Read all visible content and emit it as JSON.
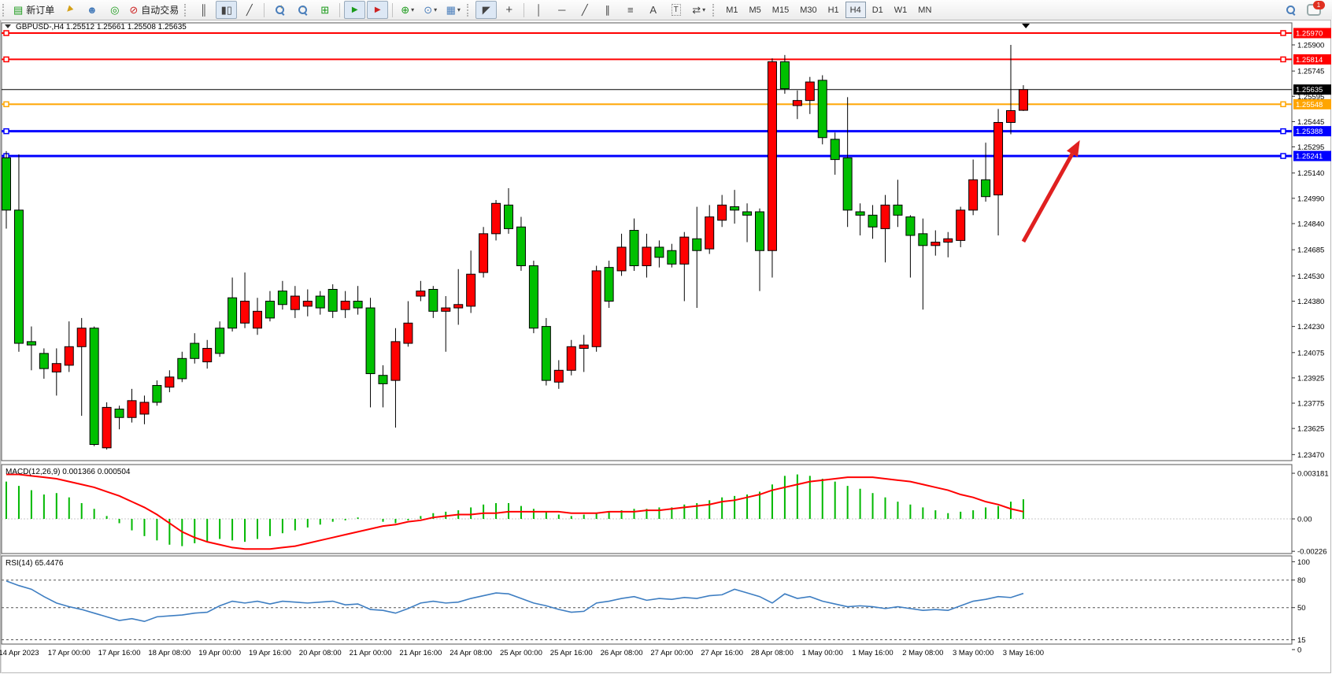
{
  "toolbar": {
    "new_order_label": "新订单",
    "autotrade_label": "自动交易",
    "timeframes": [
      "M1",
      "M5",
      "M15",
      "M30",
      "H1",
      "H4",
      "D1",
      "W1",
      "MN"
    ],
    "active_timeframe": "H4",
    "notification_count": "1"
  },
  "icons": {
    "new_order": "▤",
    "gold_arrow": "▲",
    "profile": "☻",
    "signals": "◎",
    "autotrade": "⊘",
    "bars_chart": "║",
    "candle_chart": "▮▯",
    "line_chart": "╱",
    "zoom_in": "+",
    "zoom_out": "−",
    "tiles": "⊞",
    "autoscroll": "▶",
    "shift": "▶",
    "indicators": "⊕",
    "periods": "⊙",
    "template": "▦",
    "cursor": "◤",
    "crosshair": "+",
    "vline": "│",
    "hline": "─",
    "trendline": "╱",
    "channel": "∥",
    "fibo": "≡",
    "text": "A",
    "label": "T",
    "arrows": "⇄",
    "dropdown": "▾"
  },
  "chart": {
    "title": "GBPUSD-,H4  1.25512 1.25661 1.25508 1.25635",
    "symbol": "GBPUSD-",
    "period": "H4",
    "open": "1.25512",
    "high": "1.25661",
    "low": "1.25508",
    "close": "1.25635"
  },
  "chart_data": {
    "type": "candlestick",
    "title": "GBPUSD-,H4  1.25512 1.25661 1.25508 1.25635",
    "price_axis_ticks": [
      "1.25900",
      "1.25745",
      "1.25595",
      "1.25445",
      "1.25295",
      "1.25140",
      "1.24990",
      "1.24840",
      "1.24685",
      "1.24530",
      "1.24380",
      "1.24230",
      "1.24075",
      "1.23925",
      "1.23775",
      "1.23625",
      "1.23470"
    ],
    "time_labels": [
      "14 Apr 2023",
      "17 Apr 00:00",
      "17 Apr 16:00",
      "18 Apr 08:00",
      "19 Apr 00:00",
      "19 Apr 16:00",
      "20 Apr 08:00",
      "21 Apr 00:00",
      "21 Apr 16:00",
      "24 Apr 08:00",
      "25 Apr 00:00",
      "25 Apr 16:00",
      "26 Apr 08:00",
      "27 Apr 00:00",
      "27 Apr 16:00",
      "28 Apr 08:00",
      "1 May 00:00",
      "1 May 16:00",
      "2 May 08:00",
      "3 May 00:00",
      "3 May 16:00"
    ],
    "levels": [
      {
        "label": "1.25970",
        "price": 1.2597,
        "color": "#ff0000",
        "width": 2,
        "handles": true
      },
      {
        "label": "1.25814",
        "price": 1.25814,
        "color": "#ff0000",
        "width": 2,
        "handles": true
      },
      {
        "label": "1.25635",
        "price": 1.25635,
        "color": "#000000",
        "width": 1,
        "handles": false
      },
      {
        "label": "1.25548",
        "price": 1.25548,
        "color": "#ffa500",
        "width": 2,
        "handles": true
      },
      {
        "label": "1.25388",
        "price": 1.25388,
        "color": "#0000ff",
        "width": 3,
        "handles": true
      },
      {
        "label": "1.25241",
        "price": 1.25241,
        "color": "#0000ff",
        "width": 3,
        "handles": true
      }
    ],
    "candles_columns": [
      "bullish",
      "body_top",
      "body_bottom",
      "high",
      "low"
    ],
    "candles": [
      [
        1,
        1.2523,
        1.2492,
        1.2527,
        1.2481
      ],
      [
        1,
        1.2492,
        1.2413,
        1.2525,
        1.2408
      ],
      [
        1,
        1.2414,
        1.2412,
        1.2423,
        1.2397
      ],
      [
        1,
        1.2407,
        1.2398,
        1.241,
        1.2392
      ],
      [
        0,
        1.2401,
        1.2396,
        1.241,
        1.2382
      ],
      [
        0,
        1.2411,
        1.24,
        1.2426,
        1.2396
      ],
      [
        0,
        1.2422,
        1.2411,
        1.2428,
        1.237
      ],
      [
        1,
        1.2422,
        1.2353,
        1.2423,
        1.2352
      ],
      [
        0,
        1.2375,
        1.2351,
        1.2378,
        1.235
      ],
      [
        1,
        1.2374,
        1.2369,
        1.2376,
        1.2362
      ],
      [
        0,
        1.2379,
        1.2369,
        1.2386,
        1.2366
      ],
      [
        0,
        1.2378,
        1.2371,
        1.2382,
        1.2365
      ],
      [
        1,
        1.2388,
        1.2378,
        1.2391,
        1.2376
      ],
      [
        0,
        1.2393,
        1.2387,
        1.2397,
        1.2384
      ],
      [
        1,
        1.2404,
        1.2392,
        1.2408,
        1.239
      ],
      [
        1,
        1.2413,
        1.2404,
        1.2419,
        1.2401
      ],
      [
        0,
        1.241,
        1.2402,
        1.2415,
        1.2398
      ],
      [
        1,
        1.2422,
        1.2407,
        1.2426,
        1.2405
      ],
      [
        1,
        1.244,
        1.2422,
        1.2452,
        1.242
      ],
      [
        0,
        1.2438,
        1.2425,
        1.2455,
        1.2422
      ],
      [
        0,
        1.2432,
        1.2422,
        1.244,
        1.2418
      ],
      [
        1,
        1.2438,
        1.2428,
        1.2444,
        1.2426
      ],
      [
        1,
        1.2444,
        1.2436,
        1.245,
        1.2433
      ],
      [
        0,
        1.2441,
        1.2433,
        1.2447,
        1.2428
      ],
      [
        0,
        1.2438,
        1.2435,
        1.2445,
        1.2429
      ],
      [
        1,
        1.2441,
        1.2434,
        1.2444,
        1.243
      ],
      [
        1,
        1.2445,
        1.2432,
        1.2448,
        1.2428
      ],
      [
        0,
        1.2438,
        1.2433,
        1.2444,
        1.2428
      ],
      [
        1,
        1.2438,
        1.2434,
        1.2447,
        1.243
      ],
      [
        1,
        1.2434,
        1.2395,
        1.244,
        1.2375
      ],
      [
        1,
        1.2394,
        1.2389,
        1.24,
        1.2375
      ],
      [
        0,
        1.2414,
        1.2391,
        1.2422,
        1.2363
      ],
      [
        0,
        1.2425,
        1.2413,
        1.2438,
        1.2411
      ],
      [
        0,
        1.2444,
        1.2441,
        1.245,
        1.2438
      ],
      [
        1,
        1.2445,
        1.2432,
        1.2447,
        1.2428
      ],
      [
        0,
        1.2434,
        1.2432,
        1.2441,
        1.2408
      ],
      [
        0,
        1.2436,
        1.2434,
        1.2457,
        1.2424
      ],
      [
        0,
        1.2454,
        1.2435,
        1.2468,
        1.2431
      ],
      [
        0,
        1.2478,
        1.2455,
        1.2482,
        1.2452
      ],
      [
        0,
        1.2496,
        1.2478,
        1.2498,
        1.2474
      ],
      [
        1,
        1.2495,
        1.2481,
        1.2505,
        1.2478
      ],
      [
        1,
        1.2482,
        1.2459,
        1.2488,
        1.2456
      ],
      [
        1,
        1.2459,
        1.2422,
        1.2462,
        1.2419
      ],
      [
        1,
        1.2423,
        1.2391,
        1.2428,
        1.2388
      ],
      [
        0,
        1.2397,
        1.239,
        1.2403,
        1.2386
      ],
      [
        0,
        1.2411,
        1.2397,
        1.2415,
        1.2394
      ],
      [
        0,
        1.2412,
        1.241,
        1.2418,
        1.2396
      ],
      [
        0,
        1.2456,
        1.2411,
        1.2459,
        1.2408
      ],
      [
        1,
        1.2458,
        1.2438,
        1.2462,
        1.2434
      ],
      [
        0,
        1.247,
        1.2456,
        1.2478,
        1.2453
      ],
      [
        1,
        1.248,
        1.2459,
        1.2487,
        1.2456
      ],
      [
        0,
        1.247,
        1.2459,
        1.2478,
        1.2452
      ],
      [
        1,
        1.247,
        1.2464,
        1.2474,
        1.2458
      ],
      [
        1,
        1.2468,
        1.246,
        1.2472,
        1.2458
      ],
      [
        0,
        1.2476,
        1.246,
        1.2479,
        1.2438
      ],
      [
        1,
        1.2475,
        1.2468,
        1.2494,
        1.2434
      ],
      [
        0,
        1.2488,
        1.2469,
        1.2495,
        1.2466
      ],
      [
        0,
        1.2495,
        1.2486,
        1.2501,
        1.2482
      ],
      [
        1,
        1.2494,
        1.2492,
        1.2504,
        1.2484
      ],
      [
        1,
        1.2491,
        1.2489,
        1.2496,
        1.2473
      ],
      [
        1,
        1.2491,
        1.2468,
        1.2493,
        1.2444
      ],
      [
        0,
        1.258,
        1.2468,
        1.2582,
        1.2452
      ],
      [
        1,
        1.258,
        1.2564,
        1.2584,
        1.2561
      ],
      [
        0,
        1.2557,
        1.2554,
        1.2563,
        1.2546
      ],
      [
        0,
        1.2568,
        1.2557,
        1.2571,
        1.2549
      ],
      [
        1,
        1.2569,
        1.2535,
        1.2572,
        1.2531
      ],
      [
        1,
        1.2534,
        1.2522,
        1.2538,
        1.2513
      ],
      [
        1,
        1.2523,
        1.2492,
        1.2559,
        1.2482
      ],
      [
        1,
        1.2491,
        1.2489,
        1.2496,
        1.2477
      ],
      [
        1,
        1.2489,
        1.2482,
        1.2495,
        1.2475
      ],
      [
        0,
        1.2495,
        1.2481,
        1.2501,
        1.2461
      ],
      [
        1,
        1.2495,
        1.2489,
        1.251,
        1.2482
      ],
      [
        1,
        1.2488,
        1.2477,
        1.2489,
        1.2452
      ],
      [
        1,
        1.2478,
        1.2471,
        1.2487,
        1.2433
      ],
      [
        0,
        1.2473,
        1.2471,
        1.248,
        1.2465
      ],
      [
        0,
        1.2475,
        1.2473,
        1.2479,
        1.2464
      ],
      [
        0,
        1.2492,
        1.2474,
        1.2494,
        1.247
      ],
      [
        0,
        1.251,
        1.2492,
        1.2522,
        1.2489
      ],
      [
        1,
        1.251,
        1.25,
        1.2532,
        1.2497
      ],
      [
        0,
        1.2544,
        1.2501,
        1.2552,
        1.2477
      ],
      [
        0,
        1.2551,
        1.2544,
        1.259,
        1.2537
      ],
      [
        0,
        1.25635,
        1.25512,
        1.25661,
        1.25508
      ]
    ],
    "colors": {
      "bull": "#00c000",
      "bear": "#ff0000",
      "outline": "#000000",
      "macd_hist": "#00b800",
      "macd_signal": "#ff0000",
      "rsi": "#3e7ec2",
      "arrow": "#e02020"
    },
    "macd": {
      "label": "MACD(12,26,9) 0.001366 0.000504",
      "value": "0.001366",
      "signal_value": "0.000504",
      "axis_ticks": [
        "0.003181",
        "0.00",
        "-0.00226"
      ],
      "axis_values": [
        0.003181,
        0,
        -0.00226
      ],
      "histogram": [
        0.0026,
        0.0023,
        0.002,
        0.0017,
        0.0018,
        0.0015,
        0.0011,
        0.0007,
        0.0002,
        -0.0003,
        -0.0008,
        -0.0012,
        -0.0015,
        -0.0018,
        -0.0019,
        -0.0017,
        -0.0016,
        -0.0014,
        -0.0015,
        -0.0016,
        -0.0014,
        -0.0012,
        -0.001,
        -0.0008,
        -0.0006,
        -0.0004,
        -0.0002,
        -0.0001,
        0.0001,
        0.0,
        -0.0002,
        -0.0003,
        -0.0001,
        0.0002,
        0.0004,
        0.0005,
        0.0006,
        0.0008,
        0.001,
        0.0011,
        0.0011,
        0.0009,
        0.0007,
        0.0005,
        0.0003,
        0.0002,
        0.0003,
        0.0004,
        0.0005,
        0.0006,
        0.0007,
        0.0007,
        0.0008,
        0.0008,
        0.001,
        0.0011,
        0.0013,
        0.0015,
        0.0016,
        0.0017,
        0.0019,
        0.0024,
        0.003,
        0.0031,
        0.003,
        0.0028,
        0.0026,
        0.0023,
        0.0021,
        0.0018,
        0.0015,
        0.0012,
        0.001,
        0.0008,
        0.0006,
        0.0004,
        0.0005,
        0.0006,
        0.0008,
        0.0009,
        0.0012,
        0.001366
      ],
      "signal": [
        0.0031,
        0.0031,
        0.003,
        0.0029,
        0.0028,
        0.0026,
        0.0024,
        0.0022,
        0.0019,
        0.0016,
        0.0012,
        0.0008,
        0.0003,
        -0.0003,
        -0.0009,
        -0.0013,
        -0.0016,
        -0.0018,
        -0.002,
        -0.0021,
        -0.0021,
        -0.0021,
        -0.002,
        -0.0019,
        -0.0017,
        -0.0015,
        -0.0013,
        -0.0011,
        -0.0009,
        -0.0007,
        -0.0005,
        -0.0004,
        -0.0002,
        -0.0001,
        0.0001,
        0.0002,
        0.0003,
        0.0003,
        0.0004,
        0.0004,
        0.0005,
        0.0005,
        0.0005,
        0.0005,
        0.0005,
        0.0004,
        0.0004,
        0.0004,
        0.0005,
        0.0005,
        0.0005,
        0.0006,
        0.0006,
        0.0007,
        0.0008,
        0.0009,
        0.001,
        0.0012,
        0.0013,
        0.0015,
        0.0017,
        0.002,
        0.0022,
        0.0024,
        0.0026,
        0.0027,
        0.0028,
        0.0029,
        0.0029,
        0.0029,
        0.0028,
        0.0027,
        0.0026,
        0.0024,
        0.0022,
        0.002,
        0.0017,
        0.0015,
        0.0012,
        0.001,
        0.0007,
        0.000504
      ]
    },
    "rsi": {
      "label": "RSI(14) 65.4476",
      "value": "65.4476",
      "axis_ticks": [
        "100",
        "80",
        "50",
        "15",
        "0"
      ],
      "axis_values": [
        100,
        80,
        50,
        15,
        0
      ],
      "dashed_levels": [
        80,
        50,
        15
      ],
      "series": [
        79,
        74,
        70,
        62,
        55,
        51,
        48,
        44,
        40,
        36,
        38,
        35,
        40,
        41,
        42,
        44,
        45,
        52,
        57,
        55,
        57,
        54,
        57,
        56,
        55,
        56,
        57,
        53,
        54,
        48,
        47,
        44,
        49,
        55,
        57,
        55,
        56,
        60,
        63,
        66,
        65,
        60,
        55,
        52,
        48,
        45,
        46,
        55,
        57,
        60,
        62,
        58,
        60,
        59,
        61,
        60,
        63,
        64,
        70,
        66,
        62,
        55,
        65,
        60,
        62,
        57,
        54,
        51,
        52,
        51,
        49,
        51,
        49,
        47,
        48,
        47,
        52,
        57,
        59,
        62,
        61,
        65.4476
      ]
    },
    "annotations": {
      "up_arrow": {
        "from_candle": 81,
        "from_price": 1.24733,
        "to_candle": 85.5,
        "to_price": 1.25335
      },
      "current_bar_marker_candle": 81.2
    }
  }
}
